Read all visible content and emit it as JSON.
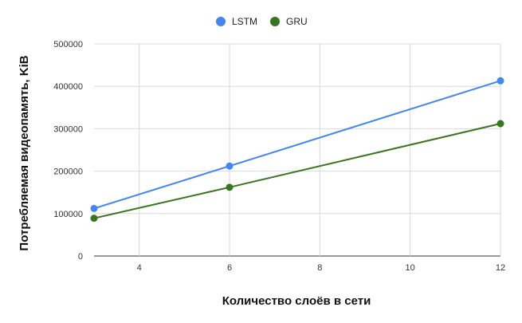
{
  "chart_data": {
    "type": "line",
    "title": "",
    "xlabel": "Количество слоёв в сети",
    "ylabel": "Потребляемая видеопамять, KiB",
    "xlim": [
      3,
      12
    ],
    "ylim": [
      0,
      500000
    ],
    "x_ticks": [
      4,
      6,
      8,
      10,
      12
    ],
    "y_ticks": [
      0,
      100000,
      200000,
      300000,
      400000,
      500000
    ],
    "x_tick_labels": [
      "4",
      "6",
      "8",
      "10",
      "12"
    ],
    "y_tick_labels": [
      "0",
      "100000",
      "200000",
      "300000",
      "400000",
      "500000"
    ],
    "grid": true,
    "legend_position": "top",
    "x": [
      3,
      6,
      12
    ],
    "series": [
      {
        "name": "LSTM",
        "color": "#4285f4",
        "values": [
          112000,
          212000,
          413000
        ]
      },
      {
        "name": "GRU",
        "color": "#38761d",
        "values": [
          89000,
          162000,
          312000
        ]
      }
    ]
  }
}
